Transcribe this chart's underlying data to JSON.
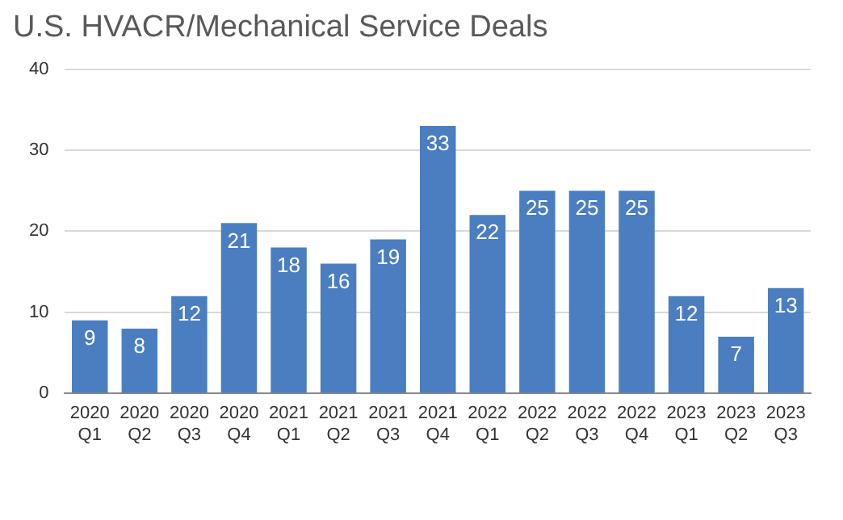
{
  "chart_data": {
    "type": "bar",
    "title": "U.S. HVACR/Mechanical Service Deals",
    "categories": [
      "2020 Q1",
      "2020 Q2",
      "2020 Q3",
      "2020 Q4",
      "2021 Q1",
      "2021 Q2",
      "2021 Q3",
      "2021 Q4",
      "2022 Q1",
      "2022 Q2",
      "2022 Q3",
      "2022 Q4",
      "2023 Q1",
      "2023 Q2",
      "2023 Q3"
    ],
    "values": [
      9,
      8,
      12,
      21,
      18,
      16,
      19,
      33,
      22,
      25,
      25,
      25,
      12,
      7,
      13
    ],
    "color": "#4a7ec0",
    "ylim": [
      0,
      40
    ],
    "yticks": [
      0,
      10,
      20,
      30,
      40
    ],
    "grid": "y",
    "data_labels": true
  }
}
